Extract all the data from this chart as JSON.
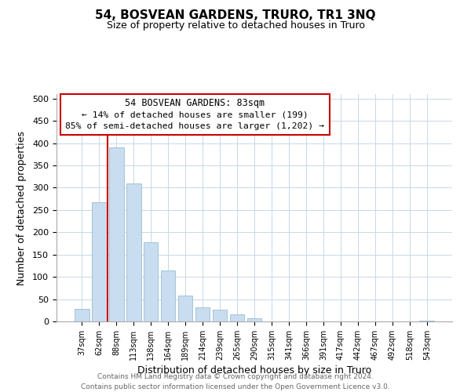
{
  "title": "54, BOSVEAN GARDENS, TRURO, TR1 3NQ",
  "subtitle": "Size of property relative to detached houses in Truro",
  "xlabel": "Distribution of detached houses by size in Truro",
  "ylabel": "Number of detached properties",
  "bar_labels": [
    "37sqm",
    "62sqm",
    "88sqm",
    "113sqm",
    "138sqm",
    "164sqm",
    "189sqm",
    "214sqm",
    "239sqm",
    "265sqm",
    "290sqm",
    "315sqm",
    "341sqm",
    "366sqm",
    "391sqm",
    "417sqm",
    "442sqm",
    "467sqm",
    "492sqm",
    "518sqm",
    "543sqm"
  ],
  "bar_values": [
    28,
    267,
    390,
    310,
    178,
    115,
    58,
    32,
    26,
    15,
    7,
    0,
    0,
    0,
    0,
    0,
    0,
    0,
    0,
    0,
    2
  ],
  "bar_color": "#c8ddef",
  "bar_edge_color": "#9bbcd4",
  "vline_x": 1.5,
  "vline_color": "#cc0000",
  "annotation_line1": "54 BOSVEAN GARDENS: 83sqm",
  "annotation_line2": "← 14% of detached houses are smaller (199)",
  "annotation_line3": "85% of semi-detached houses are larger (1,202) →",
  "ylim": [
    0,
    510
  ],
  "yticks": [
    0,
    50,
    100,
    150,
    200,
    250,
    300,
    350,
    400,
    450,
    500
  ],
  "footer_text": "Contains HM Land Registry data © Crown copyright and database right 2024.\nContains public sector information licensed under the Open Government Licence v3.0.",
  "background_color": "#ffffff",
  "grid_color": "#c8d8e8"
}
